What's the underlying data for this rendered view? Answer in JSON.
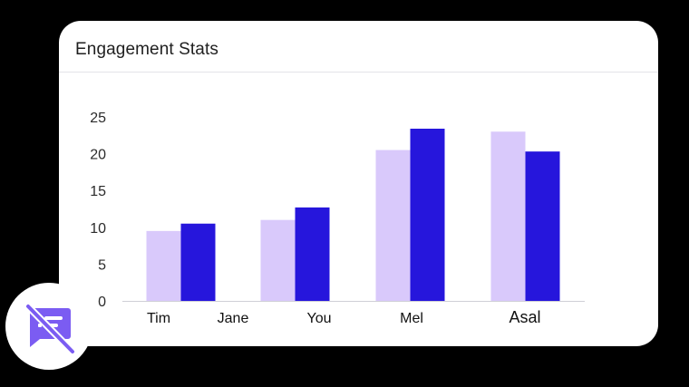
{
  "card": {
    "title": "Engagement Stats"
  },
  "colors": {
    "series_light": "#d9c9fb",
    "series_dark": "#2616dc",
    "axis": "#cfcfd6",
    "tick_text": "#2b2b2b",
    "badge_icon": "#7b5cf2"
  },
  "badge": {
    "icon": "message-off-icon"
  },
  "chart_data": {
    "type": "bar",
    "title": "Engagement Stats",
    "xlabel": "",
    "ylabel": "",
    "ylim": [
      0,
      25
    ],
    "yticks": [
      0,
      5,
      10,
      15,
      20,
      25
    ],
    "grid": false,
    "categories": [
      "Tim",
      "Jane",
      "You",
      "Mel",
      "Asal"
    ],
    "series": [
      {
        "values": [
          9.5,
          0,
          11,
          20.5,
          23
        ]
      },
      {
        "values": [
          10.5,
          0,
          12.7,
          23.4,
          20.3
        ]
      }
    ]
  }
}
